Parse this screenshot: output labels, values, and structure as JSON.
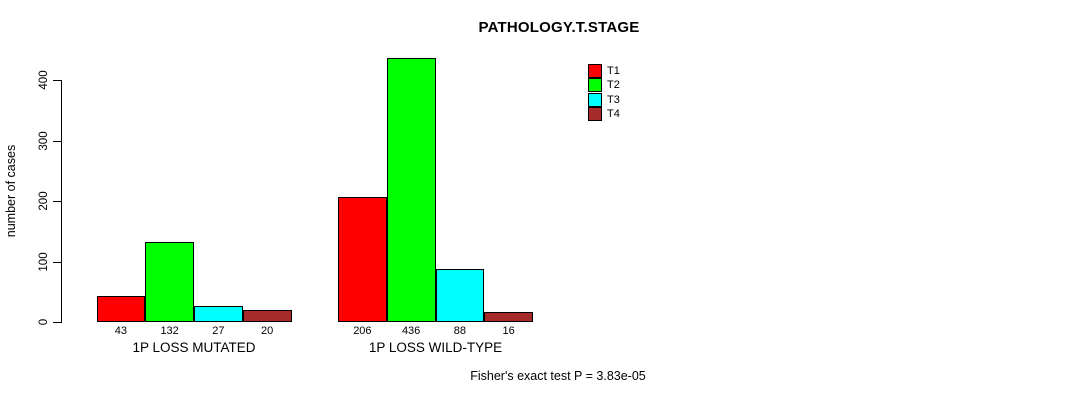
{
  "chart_data": {
    "type": "bar",
    "title": "PATHOLOGY.T.STAGE",
    "ylabel": "number of cases",
    "xlabel": "",
    "ylim": [
      0,
      400
    ],
    "yticks": [
      0,
      100,
      200,
      300,
      400
    ],
    "grid": false,
    "legend_position": "top-right",
    "categories": [
      "1P LOSS MUTATED",
      "1P LOSS WILD-TYPE"
    ],
    "series": [
      {
        "name": "T1",
        "color": "#ff0000",
        "values": [
          43,
          206
        ]
      },
      {
        "name": "T2",
        "color": "#00ff00",
        "values": [
          132,
          436
        ]
      },
      {
        "name": "T3",
        "color": "#00ffff",
        "values": [
          27,
          88
        ]
      },
      {
        "name": "T4",
        "color": "#a52a2a",
        "values": [
          20,
          16
        ]
      }
    ],
    "bar_value_labels_shown": true,
    "annotation": "Fisher's exact test P = 3.83e-05"
  }
}
